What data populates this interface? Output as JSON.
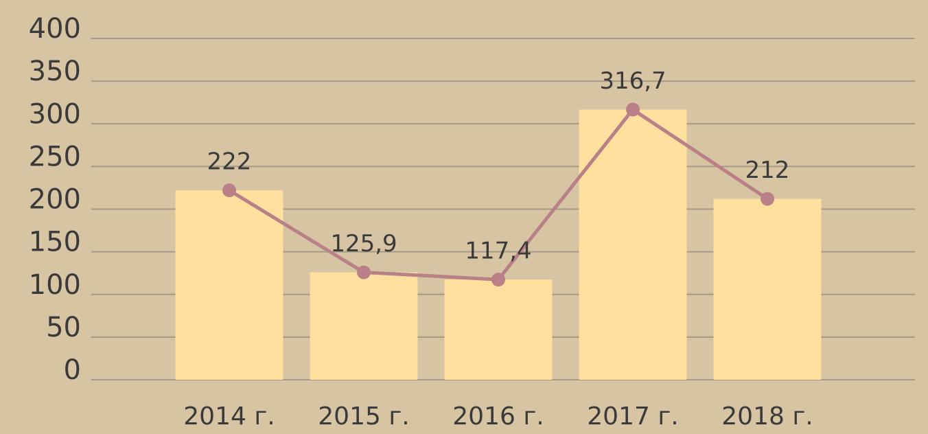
{
  "chart_data": {
    "type": "bar",
    "categories": [
      "2014 г.",
      "2015 г.",
      "2016 г.",
      "2017 г.",
      "2018 г."
    ],
    "values": [
      222,
      125.9,
      117.4,
      316.7,
      212
    ],
    "value_labels": [
      "222",
      "125,9",
      "117,4",
      "316,7",
      "212"
    ],
    "color": "#ffe09e",
    "line_color": "#b98088",
    "ylim": [
      0,
      400
    ],
    "yticks": [
      0,
      50,
      100,
      150,
      200,
      250,
      300,
      350,
      400
    ],
    "grid": true
  }
}
